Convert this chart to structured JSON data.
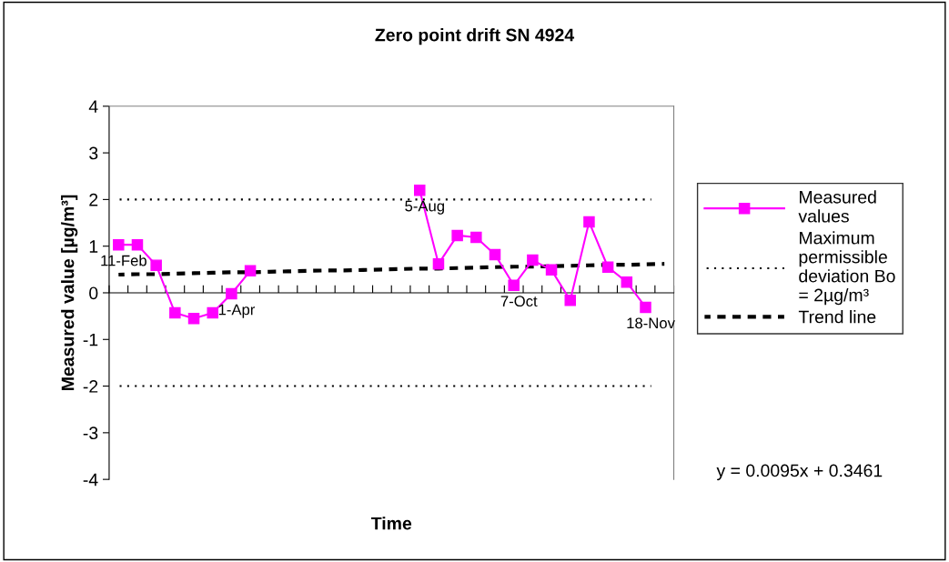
{
  "chart_data": {
    "type": "line",
    "title": "Zero point drift SN 4924",
    "xlabel": "Time",
    "ylabel": "Measured value [µg/m³]",
    "categories": [
      null,
      null,
      null,
      null,
      null,
      null,
      null,
      null,
      null,
      null,
      null,
      null,
      null,
      null,
      null,
      null,
      null,
      null,
      null,
      null,
      null,
      null,
      null,
      null,
      null,
      null,
      null,
      null,
      null,
      null
    ],
    "series": [
      {
        "name": "Measured values",
        "color": "#ff00ff",
        "marker": "square",
        "line_style": "solid",
        "values": [
          1.03,
          1.03,
          0.59,
          -0.43,
          -0.55,
          -0.43,
          -0.02,
          0.47,
          null,
          null,
          null,
          null,
          null,
          null,
          null,
          null,
          2.2,
          0.62,
          1.23,
          1.19,
          0.82,
          0.16,
          0.7,
          0.49,
          -0.16,
          1.52,
          0.55,
          0.23,
          -0.31,
          null
        ],
        "value_labels": [
          "11-Feb",
          null,
          null,
          null,
          null,
          null,
          "1-Apr",
          null,
          null,
          null,
          null,
          null,
          null,
          null,
          null,
          null,
          "5-Aug",
          null,
          null,
          null,
          null,
          "7-Oct",
          null,
          null,
          null,
          null,
          null,
          null,
          "18-Nov",
          null
        ]
      },
      {
        "name": "Trend line",
        "color": "#000000",
        "marker": "none",
        "line_style": "dashed",
        "values": [
          0.39,
          0.4,
          0.4,
          0.41,
          0.42,
          0.43,
          0.44,
          0.44,
          0.45,
          0.46,
          0.47,
          0.48,
          0.48,
          0.49,
          0.5,
          0.51,
          0.52,
          0.52,
          0.53,
          0.54,
          0.55,
          0.56,
          0.56,
          0.57,
          0.58,
          0.59,
          0.6,
          0.6,
          0.61,
          0.62
        ]
      }
    ],
    "ref_lines": [
      {
        "axis": "y",
        "value": 2,
        "label": "Maximum permissible deviation Bo = 2µg/m³",
        "color": "#000000",
        "line_style": "dotted"
      },
      {
        "axis": "y",
        "value": -2,
        "color": "#000000",
        "line_style": "dotted"
      }
    ],
    "ylim": [
      -4,
      4
    ],
    "yticks": [
      -4,
      -3,
      -2,
      -1,
      0,
      1,
      2,
      3,
      4
    ],
    "grid": false,
    "legend": "right",
    "annotations": [
      "y = 0.0095x + 0.3461"
    ]
  }
}
